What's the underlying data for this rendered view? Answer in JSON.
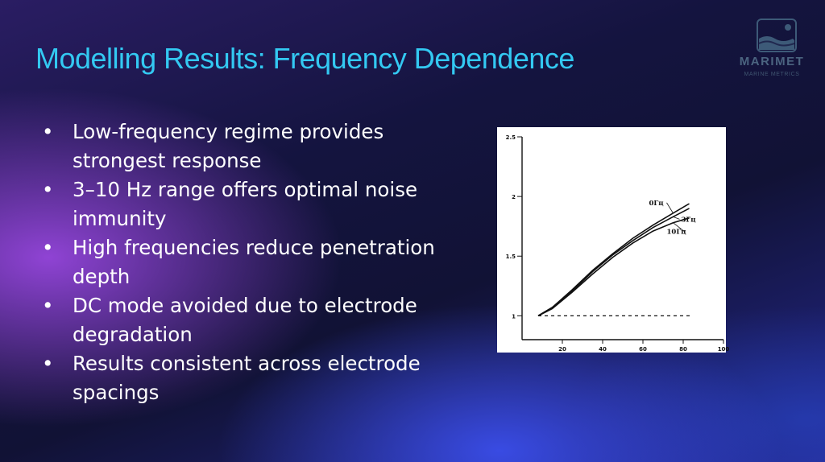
{
  "slide": {
    "title": "Modelling Results: Frequency Dependence",
    "logo": {
      "word": "MARIMET",
      "subtitle": "MARINE METRICS"
    },
    "bullets": [
      "Low-frequency regime provides strongest response",
      "3–10 Hz range offers optimal noise immunity",
      "High frequencies reduce penetration depth",
      "DC mode avoided due to electrode degradation",
      "Results consistent across electrode spacings"
    ],
    "bullet_glyph": "•"
  },
  "chart_data": {
    "type": "line",
    "xlim": [
      0,
      100
    ],
    "ylim": [
      0.8,
      2.5
    ],
    "x_ticks": [
      "20",
      "40",
      "60",
      "80",
      "100"
    ],
    "y_ticks": [
      "1",
      "1.5",
      "2",
      "2.5"
    ],
    "series": [
      {
        "name": "0Гц",
        "x": [
          8,
          15,
          25,
          35,
          45,
          55,
          65,
          75,
          83
        ],
        "y": [
          1.0,
          1.07,
          1.22,
          1.38,
          1.52,
          1.65,
          1.76,
          1.86,
          1.94
        ]
      },
      {
        "name": "3Гц",
        "x": [
          8,
          15,
          25,
          35,
          45,
          55,
          65,
          75,
          83
        ],
        "y": [
          1.0,
          1.07,
          1.21,
          1.37,
          1.51,
          1.63,
          1.74,
          1.83,
          1.9
        ]
      },
      {
        "name": "10Гц",
        "x": [
          8,
          15,
          25,
          35,
          45,
          55,
          65,
          75,
          83
        ],
        "y": [
          1.0,
          1.06,
          1.2,
          1.35,
          1.49,
          1.61,
          1.71,
          1.78,
          1.82
        ]
      },
      {
        "x": [
          8,
          84
        ],
        "y": [
          1.0,
          1.0
        ],
        "style": "dashed"
      }
    ],
    "line_color": "#111111",
    "background": "#ffffff"
  }
}
